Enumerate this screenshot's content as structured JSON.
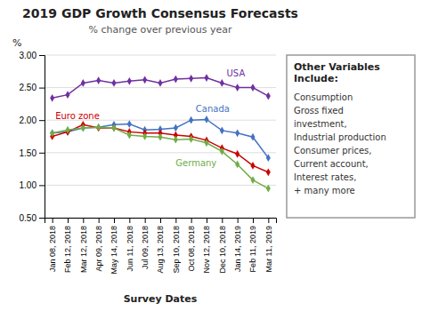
{
  "chart_data": {
    "type": "line",
    "title": "2019 GDP Growth Consensus Forecasts",
    "subtitle": "% change over previous year",
    "ylabel": "%",
    "xlabel": "Survey Dates",
    "categories": [
      "Jan 08, 2018",
      "Feb 12, 2018",
      "Mar 12, 2018",
      "Apr 09, 2018",
      "May 14, 2018",
      "Jun 11, 2018",
      "Jul 09, 2018",
      "Aug 13, 2018",
      "Sep 10, 2018",
      "Oct 08, 2018",
      "Nov 12, 2018",
      "Dec 10, 2018",
      "Jan 14, 2019",
      "Feb 11, 2019",
      "Mar 11, 2019"
    ],
    "series": [
      {
        "name": "USA",
        "color": "#7030A0",
        "marker": "diamond",
        "values": [
          2.34,
          2.39,
          2.57,
          2.61,
          2.57,
          2.6,
          2.62,
          2.57,
          2.63,
          2.64,
          2.65,
          2.57,
          2.5,
          2.5,
          2.37
        ]
      },
      {
        "name": "Canada",
        "color": "#4472C4",
        "marker": "diamond",
        "values": [
          1.8,
          1.82,
          1.88,
          1.89,
          1.93,
          1.94,
          1.85,
          1.86,
          1.88,
          2.0,
          2.01,
          1.84,
          1.8,
          1.74,
          1.42
        ]
      },
      {
        "name": "Euro zone",
        "color": "#CC0000",
        "marker": "diamond",
        "values": [
          1.75,
          1.82,
          1.93,
          1.88,
          1.88,
          1.82,
          1.8,
          1.8,
          1.77,
          1.75,
          1.69,
          1.57,
          1.48,
          1.3,
          1.2
        ]
      },
      {
        "name": "Germany",
        "color": "#70AD47",
        "marker": "diamond",
        "values": [
          1.8,
          1.85,
          1.88,
          1.89,
          1.88,
          1.77,
          1.75,
          1.74,
          1.7,
          1.71,
          1.65,
          1.52,
          1.32,
          1.08,
          0.95
        ]
      }
    ],
    "ylim": [
      0.5,
      3.0
    ],
    "yticks": [
      {
        "value": 0.5,
        "label": "0.50"
      },
      {
        "value": 1.0,
        "label": "1.00"
      },
      {
        "value": 1.5,
        "label": "1.50"
      },
      {
        "value": 2.0,
        "label": "2.00"
      },
      {
        "value": 2.5,
        "label": "2.50"
      },
      {
        "value": 3.0,
        "label": "3.00"
      }
    ],
    "grid": true,
    "annotations": [
      {
        "title": [
          "Other Variables",
          "Include:"
        ],
        "text": [
          "Consumption",
          "Gross fixed",
          "investment,",
          "Industrial production",
          "Consumer prices,",
          "Current account,",
          "Interest rates,",
          "+ many more"
        ]
      }
    ]
  }
}
